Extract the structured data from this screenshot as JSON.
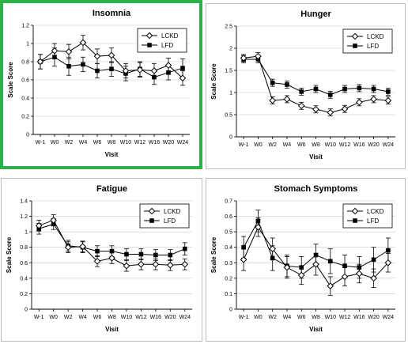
{
  "chart_data": [
    {
      "type": "line",
      "title": "Insomnia",
      "xlabel": "Visit",
      "ylabel": "Scale Score",
      "ylim": [
        0,
        1.2
      ],
      "yticks": [
        "0",
        "0.2",
        "0.4",
        "0.6",
        "0.8",
        "1",
        "1.2"
      ],
      "categories": [
        "W-1",
        "W0",
        "W2",
        "W4",
        "W6",
        "W8",
        "W10",
        "W12",
        "W16",
        "W20",
        "W24"
      ],
      "legend_position": "top-right",
      "highlighted": true,
      "series": [
        {
          "name": "LCKD",
          "marker": "diamond-open",
          "values": [
            0.8,
            0.92,
            0.91,
            1.01,
            0.86,
            0.87,
            0.7,
            0.71,
            0.7,
            0.76,
            0.62
          ],
          "errors": [
            0.08,
            0.08,
            0.08,
            0.08,
            0.08,
            0.08,
            0.08,
            0.08,
            0.08,
            0.08,
            0.08
          ]
        },
        {
          "name": "LFD",
          "marker": "square-filled",
          "values": [
            0.8,
            0.85,
            0.75,
            0.77,
            0.7,
            0.72,
            0.67,
            0.72,
            0.63,
            0.68,
            0.73
          ],
          "errors": [
            0.08,
            0.1,
            0.1,
            0.08,
            0.08,
            0.08,
            0.08,
            0.08,
            0.08,
            0.08,
            0.1
          ]
        }
      ]
    },
    {
      "type": "line",
      "title": "Hunger",
      "xlabel": "Visit",
      "ylabel": "Scale Score",
      "ylim": [
        0,
        2.5
      ],
      "yticks": [
        "0",
        "0.5",
        "1",
        "1.5",
        "2",
        "2.5"
      ],
      "categories": [
        "W-1",
        "W0",
        "W2",
        "W4",
        "W6",
        "W8",
        "W10",
        "W12",
        "W16",
        "W20",
        "W24"
      ],
      "legend_position": "top-right",
      "highlighted": false,
      "series": [
        {
          "name": "LCKD",
          "marker": "diamond-open",
          "values": [
            1.78,
            1.82,
            0.82,
            0.85,
            0.7,
            0.62,
            0.55,
            0.63,
            0.78,
            0.85,
            0.82
          ],
          "errors": [
            0.08,
            0.08,
            0.08,
            0.08,
            0.08,
            0.08,
            0.08,
            0.08,
            0.08,
            0.08,
            0.08
          ]
        },
        {
          "name": "LFD",
          "marker": "square-filled",
          "values": [
            1.75,
            1.75,
            1.22,
            1.18,
            1.02,
            1.08,
            0.95,
            1.08,
            1.1,
            1.08,
            1.02
          ],
          "errors": [
            0.08,
            0.08,
            0.08,
            0.08,
            0.08,
            0.08,
            0.08,
            0.08,
            0.08,
            0.08,
            0.08
          ]
        }
      ]
    },
    {
      "type": "line",
      "title": "Fatigue",
      "xlabel": "Visit",
      "ylabel": "Scale Score",
      "ylim": [
        0,
        1.4
      ],
      "yticks": [
        "0",
        "0.2",
        "0.4",
        "0.6",
        "0.8",
        "1",
        "1.2",
        "1.4"
      ],
      "categories": [
        "W-1",
        "W0",
        "W2",
        "W4",
        "W6",
        "W8",
        "W10",
        "W12",
        "W16",
        "W20",
        "W24"
      ],
      "legend_position": "top-right",
      "highlighted": false,
      "series": [
        {
          "name": "LCKD",
          "marker": "diamond-open",
          "values": [
            1.08,
            1.15,
            0.8,
            0.81,
            0.62,
            0.66,
            0.56,
            0.58,
            0.58,
            0.57,
            0.58
          ],
          "errors": [
            0.07,
            0.07,
            0.07,
            0.07,
            0.07,
            0.07,
            0.07,
            0.07,
            0.07,
            0.07,
            0.07
          ]
        },
        {
          "name": "LFD",
          "marker": "square-filled",
          "values": [
            1.04,
            1.1,
            0.82,
            0.8,
            0.75,
            0.75,
            0.71,
            0.71,
            0.7,
            0.7,
            0.78
          ],
          "errors": [
            0.07,
            0.07,
            0.07,
            0.07,
            0.07,
            0.07,
            0.07,
            0.07,
            0.07,
            0.07,
            0.08
          ]
        }
      ]
    },
    {
      "type": "line",
      "title": "Stomach Symptoms",
      "xlabel": "Visit",
      "ylabel": "Scale Score",
      "ylim": [
        0,
        0.7
      ],
      "yticks": [
        "0",
        "0.1",
        "0.2",
        "0.3",
        "0.4",
        "0.5",
        "0.6",
        "0.7"
      ],
      "categories": [
        "W-1",
        "W0",
        "W2",
        "W4",
        "W6",
        "W8",
        "W10",
        "W12",
        "W16",
        "W20",
        "W24"
      ],
      "legend_position": "top-right",
      "highlighted": false,
      "series": [
        {
          "name": "LCKD",
          "marker": "diamond-open",
          "values": [
            0.32,
            0.53,
            0.39,
            0.27,
            0.22,
            0.29,
            0.15,
            0.21,
            0.23,
            0.2,
            0.3
          ],
          "errors": [
            0.07,
            0.06,
            0.07,
            0.07,
            0.06,
            0.07,
            0.06,
            0.06,
            0.06,
            0.06,
            0.06
          ]
        },
        {
          "name": "LFD",
          "marker": "square-filled",
          "values": [
            0.4,
            0.57,
            0.33,
            0.28,
            0.27,
            0.35,
            0.31,
            0.28,
            0.27,
            0.32,
            0.38
          ],
          "errors": [
            0.07,
            0.07,
            0.08,
            0.07,
            0.07,
            0.07,
            0.08,
            0.07,
            0.07,
            0.08,
            0.08
          ]
        }
      ]
    }
  ]
}
